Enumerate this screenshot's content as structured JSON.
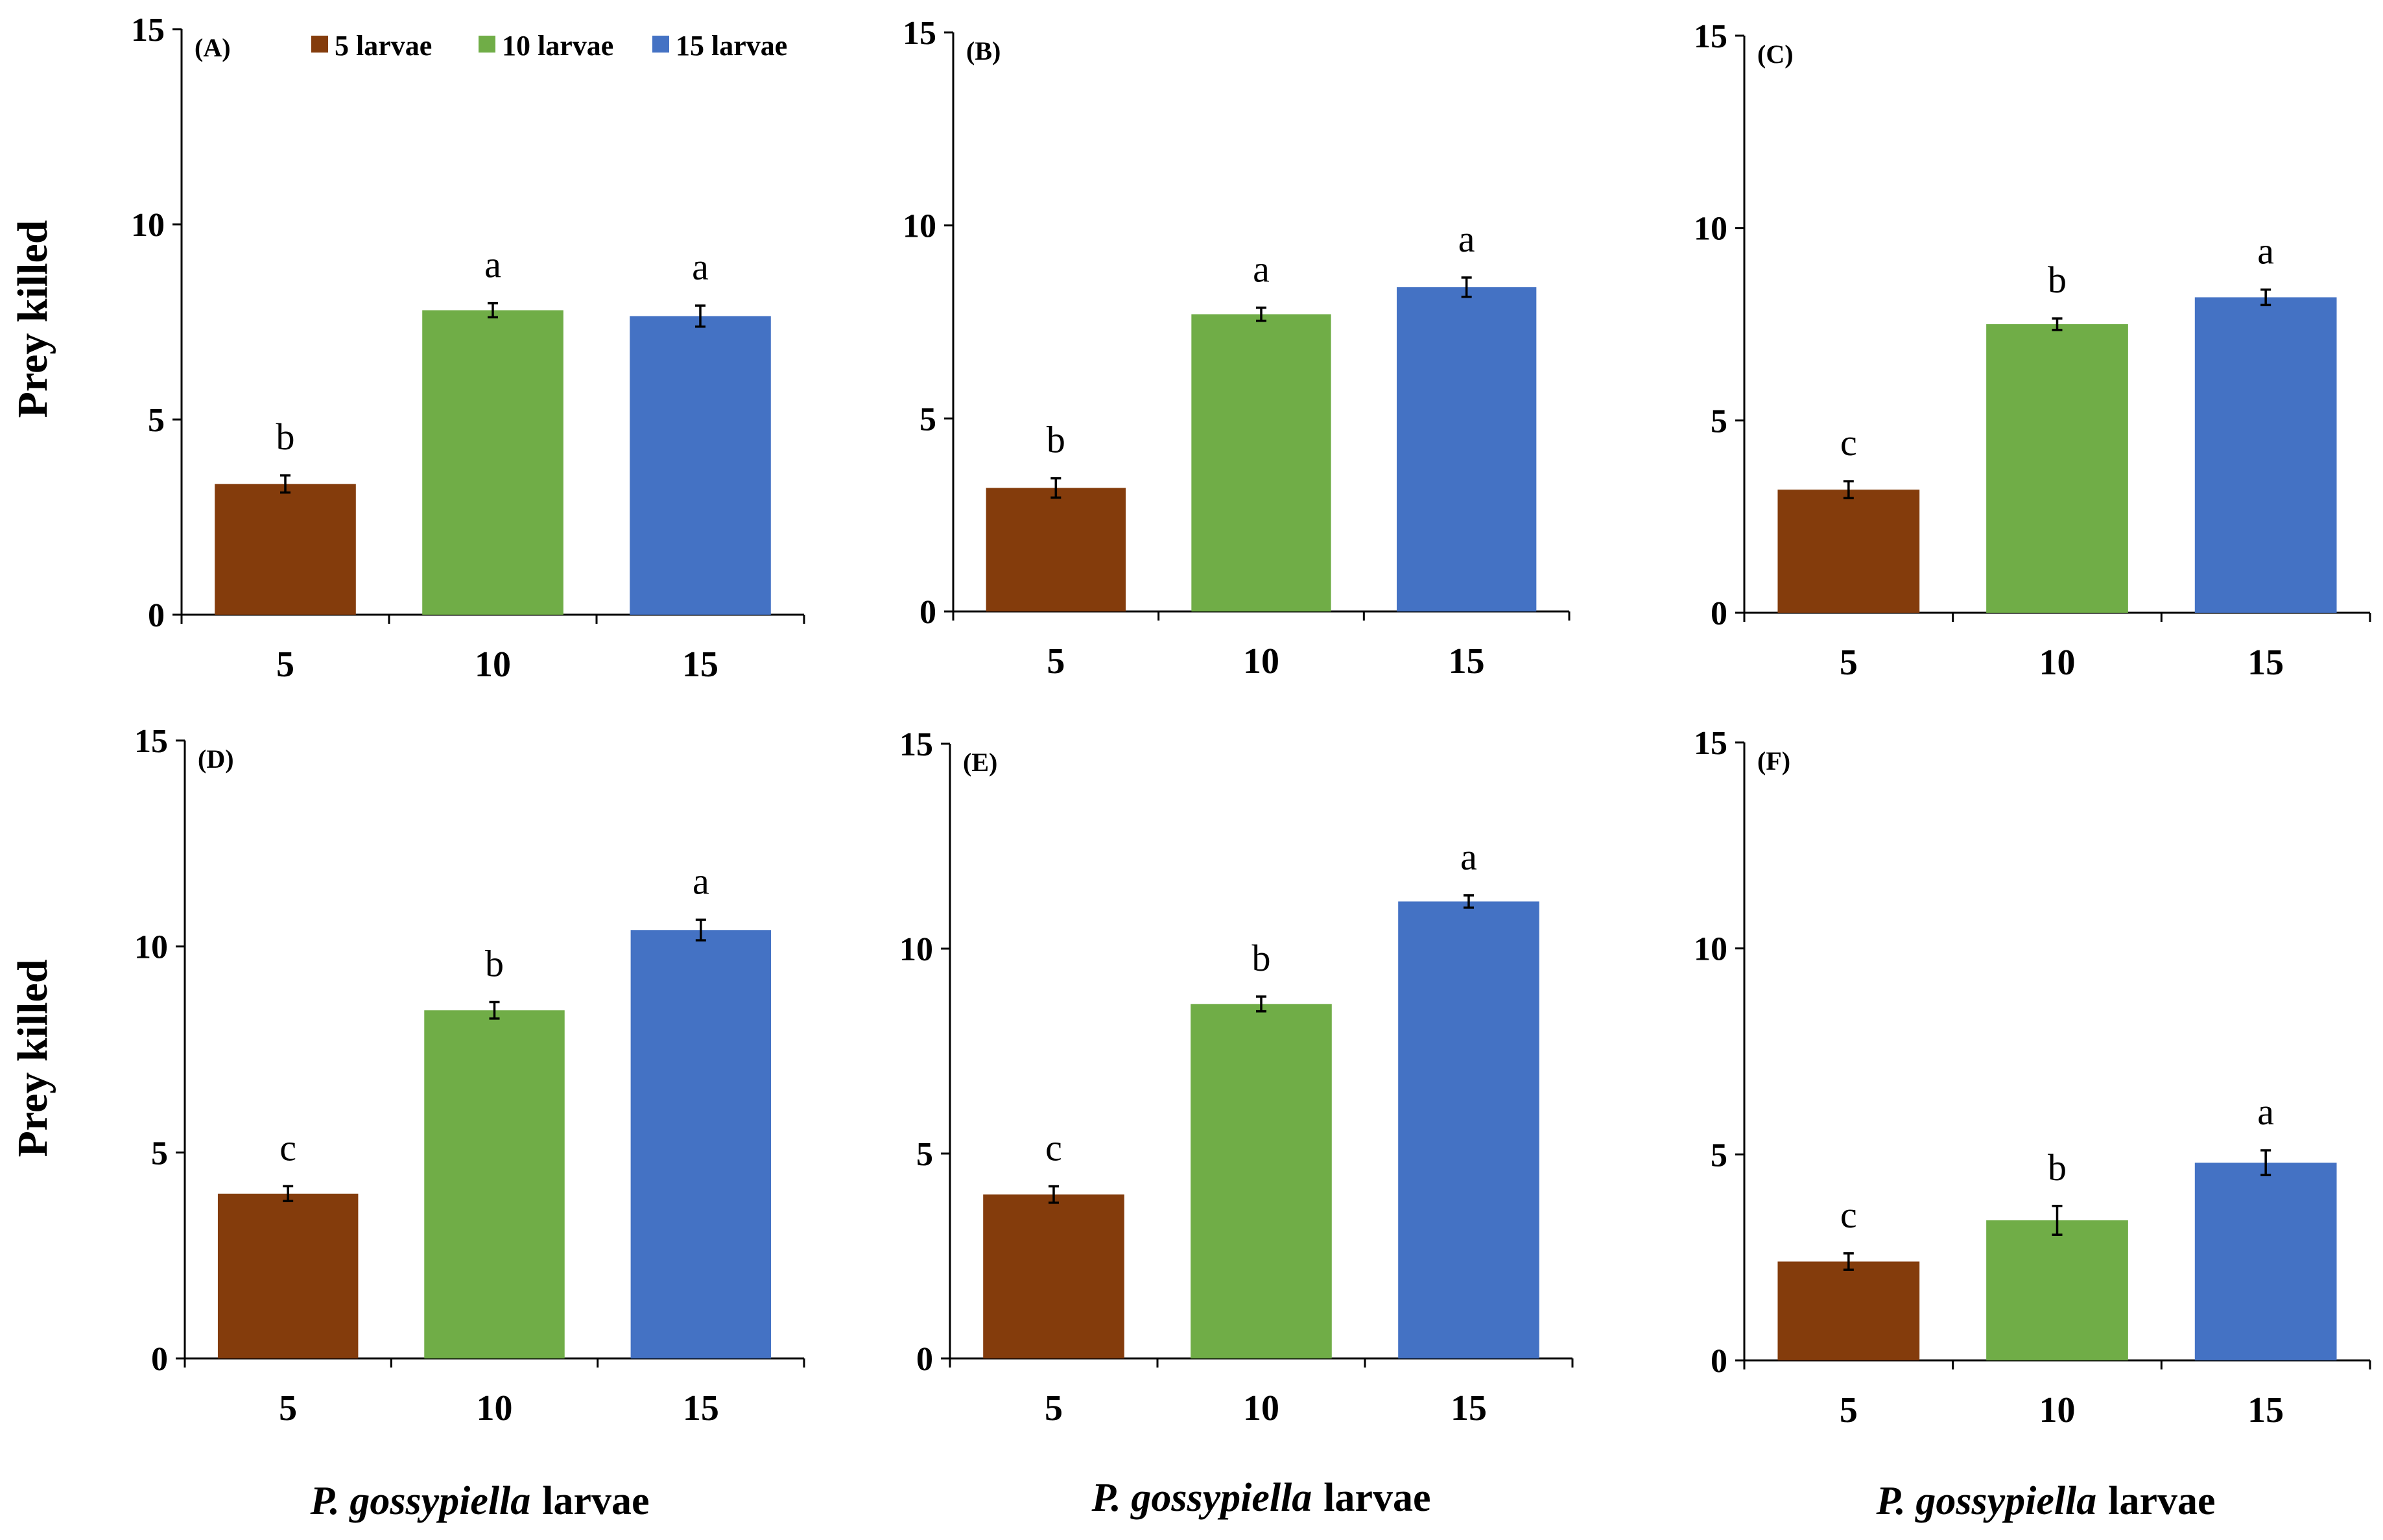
{
  "figure": {
    "y_axis_label": "Prey killed",
    "x_axis_label_italic": "P. gossypiella",
    "x_axis_label_rest": "larvae"
  },
  "legend": [
    {
      "name": "5 larvae",
      "color": "#843C0C"
    },
    {
      "name": "10 larvae",
      "color": "#70AD47"
    },
    {
      "name": "15 larvae",
      "color": "#4472C4"
    }
  ],
  "chart_data": [
    {
      "type": "bar",
      "panel": "(A)",
      "categories": [
        "5",
        "10",
        "15"
      ],
      "values": [
        3.35,
        7.8,
        7.65
      ],
      "errors": [
        0.22,
        0.18,
        0.27
      ],
      "letters": [
        "b",
        "a",
        "a"
      ],
      "ylim": [
        0,
        15
      ],
      "yticks": [
        "0",
        "5",
        "10",
        "15"
      ]
    },
    {
      "type": "bar",
      "panel": "(B)",
      "categories": [
        "5",
        "10",
        "15"
      ],
      "values": [
        3.2,
        7.7,
        8.4
      ],
      "errors": [
        0.25,
        0.17,
        0.25
      ],
      "letters": [
        "b",
        "a",
        "a"
      ],
      "ylim": [
        0,
        15
      ],
      "yticks": [
        "0",
        "5",
        "10",
        "15"
      ]
    },
    {
      "type": "bar",
      "panel": "(C)",
      "categories": [
        "5",
        "10",
        "15"
      ],
      "values": [
        3.2,
        7.5,
        8.2
      ],
      "errors": [
        0.22,
        0.15,
        0.2
      ],
      "letters": [
        "c",
        "b",
        "a"
      ],
      "ylim": [
        0,
        15
      ],
      "yticks": [
        "0",
        "5",
        "10",
        "15"
      ]
    },
    {
      "type": "bar",
      "panel": "(D)",
      "categories": [
        "5",
        "10",
        "15"
      ],
      "values": [
        4.0,
        8.45,
        10.4
      ],
      "errors": [
        0.18,
        0.2,
        0.25
      ],
      "letters": [
        "c",
        "b",
        "a"
      ],
      "ylim": [
        0,
        15
      ],
      "yticks": [
        "0",
        "5",
        "10",
        "15"
      ]
    },
    {
      "type": "bar",
      "panel": "(E)",
      "categories": [
        "5",
        "10",
        "15"
      ],
      "values": [
        4.0,
        8.65,
        11.15
      ],
      "errors": [
        0.2,
        0.18,
        0.15
      ],
      "letters": [
        "c",
        "b",
        "a"
      ],
      "ylim": [
        0,
        15
      ],
      "yticks": [
        "0",
        "5",
        "10",
        "15"
      ]
    },
    {
      "type": "bar",
      "panel": "(F)",
      "categories": [
        "5",
        "10",
        "15"
      ],
      "values": [
        2.4,
        3.4,
        4.8
      ],
      "errors": [
        0.2,
        0.35,
        0.3
      ],
      "letters": [
        "c",
        "b",
        "a"
      ],
      "ylim": [
        0,
        15
      ],
      "yticks": [
        "0",
        "5",
        "10",
        "15"
      ]
    }
  ]
}
